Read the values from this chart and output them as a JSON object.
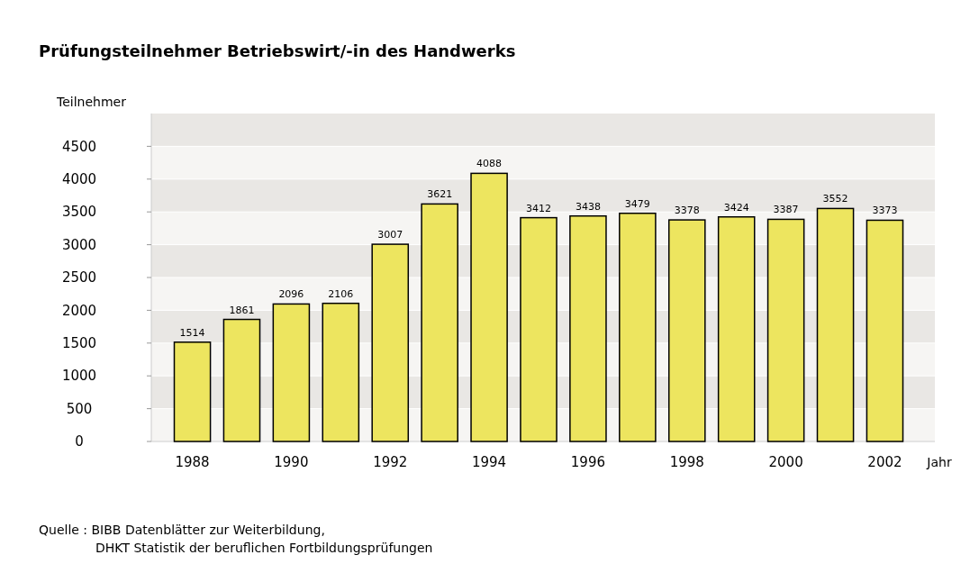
{
  "chart_data": {
    "type": "bar",
    "title": "Prüfungsteilnehmer Betriebswirt/-in des Handwerks",
    "ylabel": "Teilnehmer",
    "xlabel": "Jahr",
    "categories": [
      "1988",
      null,
      "1990",
      null,
      "1992",
      null,
      "1994",
      null,
      "1996",
      null,
      "1998",
      null,
      "2000",
      null,
      "2002"
    ],
    "values": [
      1514,
      1861,
      2096,
      2106,
      3007,
      3621,
      4088,
      3412,
      3438,
      3479,
      3378,
      3424,
      3387,
      3552,
      3373
    ],
    "color": "#ede55f",
    "ylim": [
      0,
      5000
    ],
    "yticks": [
      0,
      500,
      1000,
      1500,
      2000,
      2500,
      3000,
      3500,
      4000,
      4500
    ],
    "grid": "y",
    "data_labels": true,
    "annotations": [
      "Quelle :  BIBB Datenblätter zur Weiterbildung,",
      "DHKT Statistik der beruflichen Fortbildungsprüfungen"
    ]
  }
}
